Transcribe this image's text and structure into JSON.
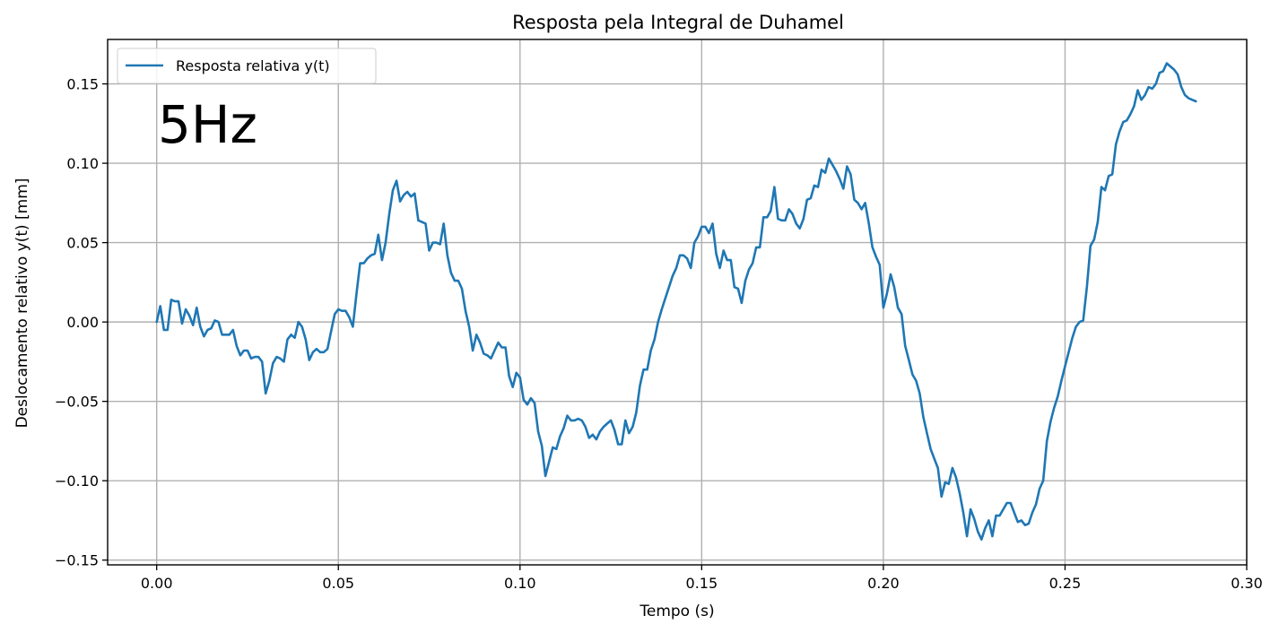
{
  "chart_data": {
    "type": "line",
    "title": "Resposta pela Integral de Duhamel",
    "xlabel": "Tempo (s)",
    "ylabel": "Deslocamento relativo y(t) [mm]",
    "xlim": [
      -0.0135,
      0.3
    ],
    "ylim": [
      -0.153,
      0.178
    ],
    "grid": true,
    "legend": "upper-left",
    "x_ticks": [
      0.0,
      0.05,
      0.1,
      0.15,
      0.2,
      0.25,
      0.3
    ],
    "x_tick_labels": [
      "0.00",
      "0.05",
      "0.10",
      "0.15",
      "0.20",
      "0.25",
      "0.30"
    ],
    "y_ticks": [
      -0.15,
      -0.1,
      -0.05,
      0.0,
      0.05,
      0.1,
      0.15
    ],
    "y_tick_labels": [
      "−0.15",
      "−0.10",
      "−0.05",
      "0.00",
      "0.05",
      "0.10",
      "0.15"
    ],
    "annotation": "5Hz",
    "series": [
      {
        "name": "Resposta relativa y(t)",
        "color": "#1f77b4",
        "x": [
          0.0,
          0.001,
          0.002,
          0.003,
          0.004,
          0.005,
          0.006,
          0.007,
          0.008,
          0.009,
          0.01,
          0.011,
          0.012,
          0.013,
          0.014,
          0.015,
          0.016,
          0.017,
          0.018,
          0.019,
          0.02,
          0.021,
          0.022,
          0.023,
          0.024,
          0.025,
          0.026,
          0.027,
          0.028,
          0.029,
          0.03,
          0.031,
          0.032,
          0.033,
          0.034,
          0.035,
          0.036,
          0.037,
          0.038,
          0.039,
          0.04,
          0.041,
          0.042,
          0.043,
          0.044,
          0.045,
          0.046,
          0.047,
          0.048,
          0.049,
          0.05,
          0.051,
          0.052,
          0.053,
          0.054,
          0.055,
          0.056,
          0.057,
          0.058,
          0.059,
          0.06,
          0.061,
          0.062,
          0.063,
          0.064,
          0.065,
          0.066,
          0.067,
          0.068,
          0.069,
          0.07,
          0.071,
          0.072,
          0.073,
          0.074,
          0.075,
          0.076,
          0.077,
          0.078,
          0.079,
          0.08,
          0.081,
          0.082,
          0.083,
          0.084,
          0.085,
          0.086,
          0.087,
          0.088,
          0.089,
          0.09,
          0.091,
          0.092,
          0.093,
          0.094,
          0.095,
          0.096,
          0.097,
          0.098,
          0.099,
          0.1,
          0.101,
          0.102,
          0.103,
          0.104,
          0.105,
          0.106,
          0.107,
          0.108,
          0.109,
          0.11,
          0.111,
          0.112,
          0.113,
          0.114,
          0.115,
          0.116,
          0.117,
          0.118,
          0.119,
          0.12,
          0.121,
          0.122,
          0.123,
          0.124,
          0.125,
          0.126,
          0.127,
          0.128,
          0.129,
          0.13,
          0.131,
          0.132,
          0.133,
          0.134,
          0.135,
          0.136,
          0.137,
          0.138,
          0.139,
          0.14,
          0.141,
          0.142,
          0.143,
          0.144,
          0.145,
          0.146,
          0.147,
          0.148,
          0.149,
          0.15,
          0.151,
          0.152,
          0.153,
          0.154,
          0.155,
          0.156,
          0.157,
          0.158,
          0.159,
          0.16,
          0.161,
          0.162,
          0.163,
          0.164,
          0.165,
          0.166,
          0.167,
          0.168,
          0.169,
          0.17,
          0.171,
          0.172,
          0.173,
          0.174,
          0.175,
          0.176,
          0.177,
          0.178,
          0.179,
          0.18,
          0.181,
          0.182,
          0.183,
          0.184,
          0.185,
          0.186,
          0.187,
          0.188,
          0.189,
          0.19,
          0.191,
          0.192,
          0.193,
          0.194,
          0.195,
          0.196,
          0.197,
          0.198,
          0.199,
          0.2,
          0.201,
          0.202,
          0.203,
          0.204,
          0.205,
          0.206,
          0.207,
          0.208,
          0.209,
          0.21,
          0.211,
          0.212,
          0.213,
          0.214,
          0.215,
          0.216,
          0.217,
          0.218,
          0.219,
          0.22,
          0.221,
          0.222,
          0.223,
          0.224,
          0.225,
          0.226,
          0.227,
          0.228,
          0.229,
          0.23,
          0.231,
          0.232,
          0.233,
          0.234,
          0.235,
          0.236,
          0.237,
          0.238,
          0.239,
          0.24,
          0.241,
          0.242,
          0.243,
          0.244,
          0.245,
          0.246,
          0.247,
          0.248,
          0.249,
          0.25,
          0.251,
          0.252,
          0.253,
          0.254,
          0.255,
          0.256,
          0.257,
          0.258,
          0.259,
          0.26,
          0.261,
          0.262,
          0.263,
          0.264,
          0.265,
          0.266,
          0.267,
          0.268,
          0.269,
          0.27,
          0.271,
          0.272,
          0.273,
          0.274,
          0.275,
          0.276,
          0.277,
          0.278,
          0.279,
          0.28,
          0.281,
          0.282,
          0.283,
          0.284,
          0.285,
          0.286
        ],
        "y": [
          0.0,
          0.01,
          -0.005,
          -0.005,
          0.014,
          0.013,
          0.013,
          -0.001,
          0.008,
          0.004,
          -0.002,
          0.009,
          -0.003,
          -0.009,
          -0.005,
          -0.004,
          0.001,
          0.0,
          -0.008,
          -0.008,
          -0.008,
          -0.005,
          -0.015,
          -0.021,
          -0.018,
          -0.018,
          -0.023,
          -0.022,
          -0.022,
          -0.025,
          -0.045,
          -0.037,
          -0.026,
          -0.022,
          -0.023,
          -0.025,
          -0.011,
          -0.008,
          -0.01,
          0.0,
          -0.003,
          -0.011,
          -0.024,
          -0.019,
          -0.017,
          -0.019,
          -0.019,
          -0.017,
          -0.006,
          0.005,
          0.008,
          0.007,
          0.007,
          0.003,
          -0.003,
          0.018,
          0.037,
          0.037,
          0.04,
          0.042,
          0.043,
          0.055,
          0.039,
          0.05,
          0.068,
          0.083,
          0.089,
          0.076,
          0.08,
          0.082,
          0.079,
          0.081,
          0.064,
          0.063,
          0.062,
          0.045,
          0.05,
          0.05,
          0.049,
          0.062,
          0.042,
          0.031,
          0.026,
          0.026,
          0.021,
          0.007,
          -0.003,
          -0.018,
          -0.008,
          -0.013,
          -0.02,
          -0.021,
          -0.023,
          -0.018,
          -0.013,
          -0.016,
          -0.016,
          -0.034,
          -0.041,
          -0.032,
          -0.035,
          -0.049,
          -0.052,
          -0.048,
          -0.051,
          -0.069,
          -0.078,
          -0.097,
          -0.088,
          -0.079,
          -0.08,
          -0.072,
          -0.067,
          -0.059,
          -0.062,
          -0.062,
          -0.061,
          -0.062,
          -0.066,
          -0.073,
          -0.071,
          -0.074,
          -0.069,
          -0.066,
          -0.064,
          -0.062,
          -0.068,
          -0.077,
          -0.077,
          -0.062,
          -0.07,
          -0.066,
          -0.057,
          -0.04,
          -0.03,
          -0.03,
          -0.018,
          -0.011,
          0.0,
          0.008,
          0.015,
          0.022,
          0.029,
          0.034,
          0.042,
          0.042,
          0.04,
          0.034,
          0.05,
          0.054,
          0.06,
          0.06,
          0.056,
          0.062,
          0.043,
          0.034,
          0.045,
          0.039,
          0.039,
          0.022,
          0.021,
          0.012,
          0.026,
          0.033,
          0.037,
          0.047,
          0.047,
          0.066,
          0.066,
          0.07,
          0.085,
          0.065,
          0.064,
          0.064,
          0.071,
          0.068,
          0.062,
          0.059,
          0.065,
          0.077,
          0.078,
          0.086,
          0.085,
          0.096,
          0.094,
          0.103,
          0.099,
          0.095,
          0.09,
          0.084,
          0.098,
          0.093,
          0.077,
          0.075,
          0.071,
          0.075,
          0.062,
          0.047,
          0.041,
          0.036,
          0.009,
          0.018,
          0.03,
          0.022,
          0.009,
          0.005,
          -0.015,
          -0.024,
          -0.033,
          -0.037,
          -0.045,
          -0.06,
          -0.07,
          -0.08,
          -0.086,
          -0.092,
          -0.11,
          -0.101,
          -0.102,
          -0.092,
          -0.098,
          -0.108,
          -0.12,
          -0.135,
          -0.118,
          -0.124,
          -0.132,
          -0.137,
          -0.13,
          -0.125,
          -0.135,
          -0.122,
          -0.122,
          -0.118,
          -0.114,
          -0.114,
          -0.12,
          -0.126,
          -0.125,
          -0.128,
          -0.127,
          -0.12,
          -0.115,
          -0.105,
          -0.1,
          -0.075,
          -0.063,
          -0.054,
          -0.047,
          -0.037,
          -0.028,
          -0.019,
          -0.01,
          -0.003,
          0.0,
          0.001,
          0.022,
          0.048,
          0.052,
          0.063,
          0.085,
          0.083,
          0.092,
          0.093,
          0.112,
          0.12,
          0.126,
          0.127,
          0.131,
          0.136,
          0.146,
          0.14,
          0.143,
          0.148,
          0.147,
          0.15,
          0.157,
          0.158,
          0.163,
          0.161,
          0.159,
          0.156,
          0.148,
          0.143,
          0.141,
          0.14,
          0.139
        ]
      }
    ]
  }
}
